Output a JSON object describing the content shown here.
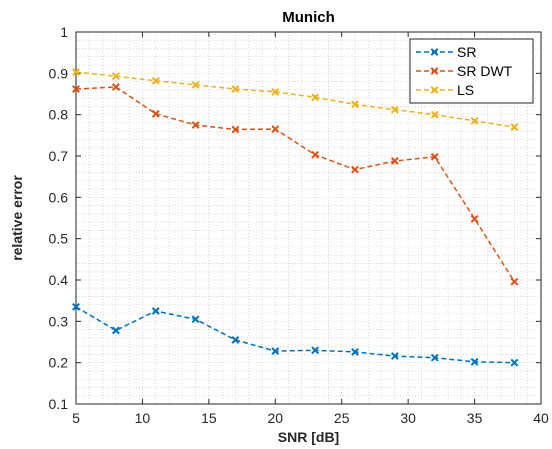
{
  "chart_data": {
    "type": "line",
    "title": "Munich",
    "xlabel": "SNR [dB]",
    "ylabel": "relative error",
    "xlim": [
      5,
      40
    ],
    "ylim": [
      0.1,
      1
    ],
    "xticks": [
      "5",
      "10",
      "15",
      "20",
      "25",
      "30",
      "35",
      "40"
    ],
    "yticks": [
      "0.1",
      "0.2",
      "0.3",
      "0.4",
      "0.5",
      "0.6",
      "0.7",
      "0.8",
      "0.9",
      "1"
    ],
    "grid": "minor dotted",
    "legend_position": "top-right",
    "x": [
      5,
      8,
      11,
      14,
      17,
      20,
      23,
      26,
      29,
      32,
      35,
      38
    ],
    "series": [
      {
        "name": "SR",
        "color": "#0072BD",
        "values": [
          0.335,
          0.278,
          0.325,
          0.305,
          0.255,
          0.228,
          0.23,
          0.226,
          0.216,
          0.212,
          0.202,
          0.2
        ]
      },
      {
        "name": "SR DWT",
        "color": "#D95319",
        "values": [
          0.862,
          0.867,
          0.802,
          0.775,
          0.764,
          0.765,
          0.703,
          0.667,
          0.688,
          0.698,
          0.548,
          0.396
        ]
      },
      {
        "name": "LS",
        "color": "#EDB120",
        "values": [
          0.903,
          0.893,
          0.882,
          0.872,
          0.862,
          0.855,
          0.842,
          0.825,
          0.812,
          0.8,
          0.785,
          0.77
        ]
      }
    ]
  }
}
